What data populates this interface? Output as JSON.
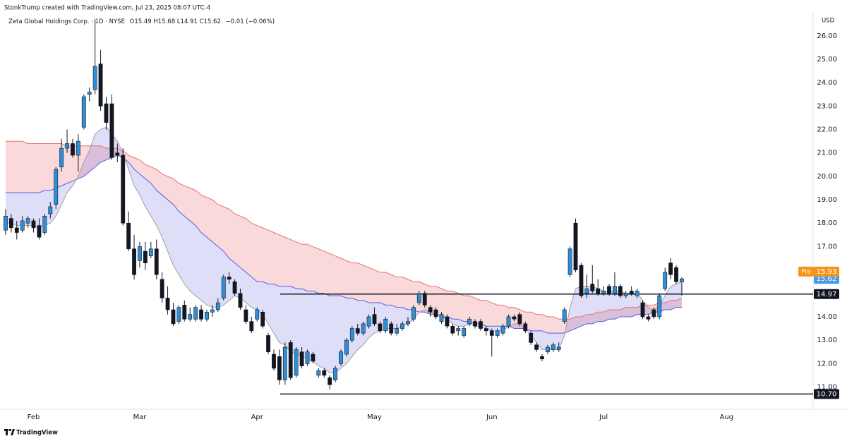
{
  "header": "StonkTrump created with TradingView.com, Jul 23, 2025 08:07 UTC-4",
  "footer": "TradingView",
  "chart_data": {
    "type": "candlestick",
    "symbol": "Zeta Global Holdings Corp. · 1D · NYSE",
    "ohlc_text": "O15.49 H15.68 L14.91 C15.62",
    "change_text": "−0.01 (−0.06%)",
    "currency": "USD",
    "up_color": "#2e8fd9",
    "down_color": "#131722",
    "grid": false,
    "ylim": [
      10.2,
      26.93
    ],
    "yticks": [
      {
        "value": 11,
        "label": "11.00"
      },
      {
        "value": 12,
        "label": "12.00"
      },
      {
        "value": 13,
        "label": "13.00"
      },
      {
        "value": 14,
        "label": "14.00"
      },
      {
        "value": 17,
        "label": "17.00"
      },
      {
        "value": 18,
        "label": "18.00"
      },
      {
        "value": 19,
        "label": "19.00"
      },
      {
        "value": 20,
        "label": "20.00"
      },
      {
        "value": 21,
        "label": "21.00"
      },
      {
        "value": 22,
        "label": "22.00"
      },
      {
        "value": 23,
        "label": "23.00"
      },
      {
        "value": 24,
        "label": "24.00"
      },
      {
        "value": 25,
        "label": "25.00"
      },
      {
        "value": 26,
        "label": "26.00"
      }
    ],
    "categories": [
      null,
      null,
      null,
      null,
      null,
      "Feb",
      null,
      null,
      null,
      null,
      null,
      null,
      null,
      null,
      null,
      null,
      null,
      null,
      null,
      null,
      null,
      null,
      null,
      null,
      "Mar",
      null,
      null,
      null,
      null,
      null,
      null,
      null,
      null,
      null,
      null,
      null,
      null,
      null,
      null,
      null,
      null,
      null,
      null,
      null,
      null,
      "Apr",
      null,
      null,
      null,
      null,
      null,
      null,
      null,
      null,
      null,
      null,
      null,
      null,
      null,
      null,
      null,
      null,
      null,
      null,
      null,
      null,
      "May",
      null,
      null,
      null,
      null,
      null,
      null,
      null,
      null,
      null,
      null,
      null,
      null,
      null,
      null,
      null,
      null,
      null,
      null,
      null,
      null,
      "Jun",
      null,
      null,
      null,
      null,
      null,
      null,
      null,
      null,
      null,
      null,
      null,
      null,
      null,
      null,
      null,
      null,
      null,
      null,
      null,
      "Jul",
      null,
      null,
      null,
      null,
      null,
      null,
      null,
      null,
      null,
      null,
      null,
      null,
      null,
      null,
      null,
      null,
      null,
      null,
      null,
      null,
      null,
      "Aug",
      null,
      null,
      null,
      null,
      null,
      null,
      null,
      null,
      null,
      null,
      null,
      null,
      null,
      null,
      null
    ],
    "open": [
      17.7,
      18.2,
      17.8,
      17.7,
      18.0,
      18.1,
      17.9,
      17.6,
      18.4,
      18.8,
      20.4,
      21.2,
      21.4,
      20.9,
      22.1,
      23.5,
      23.7,
      24.8,
      23.1,
      23.1,
      21.0,
      20.9,
      18.0,
      16.9,
      16.4,
      16.8,
      16.6,
      16.9,
      15.6,
      14.8,
      14.3,
      13.8,
      14.5,
      13.9,
      13.9,
      14.3,
      13.9,
      14.2,
      14.3,
      14.8,
      15.7,
      15.5,
      15.0,
      14.3,
      13.8,
      13.9,
      14.2,
      13.2,
      12.4,
      12.3,
      11.3,
      12.9,
      11.5,
      12.5,
      12.0,
      12.4,
      11.5,
      11.7,
      11.4,
      11.3,
      12.0,
      12.4,
      13.0,
      13.5,
      13.3,
      13.6,
      14.1,
      13.7,
      13.4,
      13.7,
      13.3,
      13.5,
      13.7,
      13.9,
      14.6,
      15.0,
      14.4,
      14.3,
      13.8,
      14.0,
      13.6,
      13.4,
      13.2,
      13.7,
      13.8,
      13.8,
      13.5,
      13.4,
      13.2,
      13.3,
      13.6,
      14.0,
      14.1,
      13.7,
      13.3,
      12.8,
      12.3,
      12.5,
      12.6,
      12.6,
      13.8,
      15.8,
      18.0,
      16.2,
      15.0,
      15.4,
      15.2,
      15.0,
      15.3,
      15.0,
      15.3,
      14.9,
      15.1,
      14.9,
      14.6,
      14.0,
      14.3,
      14.0,
      15.2,
      16.3,
      16.1,
      15.49,
      null,
      null,
      null,
      null,
      null,
      null,
      null,
      null,
      null,
      null,
      null,
      null,
      null,
      null,
      null,
      null,
      null,
      null,
      null,
      null,
      null,
      null,
      null
    ],
    "high": [
      18.6,
      18.4,
      18.1,
      18.3,
      18.3,
      18.2,
      18.2,
      18.4,
      18.9,
      20.4,
      21.6,
      22.0,
      21.6,
      21.8,
      23.5,
      23.8,
      26.7,
      25.4,
      23.4,
      23.5,
      21.4,
      21.2,
      18.5,
      17.5,
      17.2,
      17.2,
      17.2,
      17.3,
      15.9,
      15.3,
      14.6,
      14.5,
      14.7,
      14.4,
      14.5,
      14.5,
      14.3,
      14.5,
      14.8,
      15.8,
      15.9,
      15.6,
      15.2,
      14.5,
      14.0,
      14.4,
      14.3,
      13.3,
      12.6,
      12.6,
      12.9,
      13.0,
      12.7,
      12.7,
      12.6,
      12.5,
      11.8,
      11.8,
      11.5,
      11.9,
      12.6,
      13.1,
      13.6,
      13.7,
      13.8,
      14.1,
      14.4,
      13.8,
      14.0,
      13.8,
      13.7,
      13.8,
      14.0,
      14.5,
      15.1,
      15.1,
      14.5,
      14.4,
      14.2,
      14.1,
      13.7,
      13.6,
      13.6,
      14.0,
      13.9,
      13.9,
      13.6,
      13.5,
      13.5,
      13.7,
      14.1,
      14.1,
      14.2,
      13.8,
      13.4,
      12.9,
      12.4,
      12.8,
      12.9,
      12.9,
      14.4,
      17.0,
      18.2,
      16.3,
      15.8,
      16.2,
      15.6,
      15.3,
      15.4,
      15.9,
      15.4,
      15.1,
      15.3,
      15.2,
      14.7,
      14.1,
      14.4,
      15.0,
      16.1,
      16.5,
      16.2,
      15.68,
      null,
      null,
      null,
      null,
      null,
      null,
      null,
      null,
      null,
      null,
      null,
      null,
      null,
      null,
      null,
      null,
      null,
      null,
      null,
      null,
      null,
      null,
      null
    ],
    "low": [
      17.5,
      17.6,
      17.3,
      17.6,
      17.8,
      17.6,
      17.3,
      17.5,
      18.2,
      18.6,
      20.2,
      21.0,
      20.8,
      20.2,
      22.0,
      23.2,
      23.5,
      22.8,
      22.0,
      20.7,
      20.6,
      17.9,
      16.8,
      15.6,
      16.1,
      16.0,
      16.5,
      15.6,
      14.6,
      14.1,
      13.6,
      13.7,
      13.8,
      13.8,
      13.8,
      13.8,
      13.8,
      14.0,
      14.2,
      14.7,
      15.4,
      14.9,
      14.3,
      13.7,
      13.3,
      13.8,
      13.5,
      12.4,
      11.7,
      11.1,
      11.1,
      11.3,
      11.4,
      11.8,
      11.9,
      12.0,
      11.4,
      11.4,
      10.9,
      11.2,
      11.9,
      12.3,
      12.9,
      13.2,
      13.2,
      13.5,
      13.6,
      13.3,
      13.3,
      13.2,
      13.2,
      13.4,
      13.6,
      13.8,
      14.5,
      14.4,
      14.0,
      13.9,
      13.7,
      13.5,
      13.2,
      13.2,
      13.1,
      13.6,
      13.5,
      13.4,
      13.2,
      12.3,
      13.1,
      13.2,
      13.5,
      13.8,
      13.6,
      13.3,
      12.8,
      12.5,
      12.1,
      12.4,
      12.5,
      12.5,
      13.7,
      15.7,
      15.9,
      14.8,
      14.8,
      15.0,
      14.9,
      14.9,
      14.9,
      14.9,
      14.8,
      14.8,
      14.9,
      14.8,
      13.9,
      13.8,
      13.9,
      13.9,
      15.1,
      15.6,
      15.4,
      14.91,
      null,
      null,
      null,
      null,
      null,
      null,
      null,
      null,
      null,
      null,
      null,
      null,
      null,
      null,
      null,
      null,
      null,
      null,
      null,
      null,
      null,
      null,
      null
    ],
    "close": [
      18.3,
      17.8,
      17.6,
      18.1,
      18.2,
      17.8,
      17.4,
      18.3,
      18.7,
      20.3,
      21.2,
      21.4,
      20.9,
      21.5,
      23.4,
      23.6,
      24.7,
      23.0,
      22.3,
      20.8,
      20.9,
      18.0,
      16.9,
      15.8,
      17.0,
      16.3,
      16.9,
      15.8,
      14.8,
      14.3,
      13.7,
      14.4,
      13.9,
      14.1,
      14.4,
      13.9,
      14.2,
      14.3,
      14.6,
      15.7,
      15.6,
      15.0,
      14.4,
      13.8,
      13.4,
      14.3,
      13.6,
      12.5,
      11.8,
      11.3,
      12.7,
      11.4,
      12.6,
      11.9,
      12.5,
      12.1,
      11.7,
      11.5,
      11.1,
      11.8,
      12.5,
      13.0,
      13.5,
      13.3,
      13.7,
      14.0,
      13.7,
      13.4,
      13.9,
      13.3,
      13.5,
      13.7,
      13.8,
      14.4,
      15.0,
      14.5,
      14.2,
      14.0,
      14.1,
      13.6,
      13.3,
      13.5,
      13.5,
      13.9,
      13.6,
      13.5,
      13.4,
      13.2,
      13.4,
      13.6,
      14.0,
      13.9,
      13.7,
      13.4,
      12.9,
      12.6,
      12.2,
      12.7,
      12.8,
      12.7,
      14.3,
      16.9,
      16.0,
      14.9,
      15.2,
      15.1,
      15.0,
      15.1,
      15.0,
      15.3,
      14.9,
      15.0,
      15.0,
      15.1,
      14.0,
      13.9,
      14.0,
      14.9,
      15.9,
      15.8,
      15.5,
      15.62,
      null,
      null,
      null,
      null,
      null,
      null,
      null,
      null,
      null,
      null,
      null,
      null,
      null,
      null,
      null,
      null,
      null,
      null,
      null,
      null,
      null,
      null,
      null
    ],
    "ribbons": [
      {
        "color": "#e57373",
        "fill": "rgba(229,80,80,0.22)",
        "values": [
          21.5,
          21.5,
          21.5,
          21.5,
          21.4,
          21.4,
          21.4,
          21.4,
          21.4,
          21.4,
          21.4,
          21.3,
          21.3,
          21.3,
          21.3,
          21.3,
          21.3,
          21.3,
          21.2,
          21.2,
          21.2,
          21.1,
          20.9,
          20.8,
          20.7,
          20.5,
          20.4,
          20.3,
          20.1,
          20.0,
          19.9,
          19.7,
          19.6,
          19.5,
          19.4,
          19.2,
          19.1,
          19.0,
          18.8,
          18.7,
          18.6,
          18.4,
          18.3,
          18.2,
          18.0,
          17.9,
          17.8,
          17.7,
          17.6,
          17.5,
          17.4,
          17.3,
          17.2,
          17.1,
          17.1,
          17.0,
          16.9,
          16.8,
          16.7,
          16.6,
          16.5,
          16.4,
          16.3,
          16.3,
          16.2,
          16.1,
          16.0,
          15.9,
          15.9,
          15.8,
          15.7,
          15.7,
          15.6,
          15.5,
          15.5,
          15.4,
          15.3,
          15.3,
          15.2,
          15.1,
          15.1,
          15.0,
          14.9,
          14.9,
          14.8,
          14.7,
          14.7,
          14.6,
          14.5,
          14.5,
          14.4,
          14.4,
          14.3,
          14.2,
          14.2,
          14.1,
          14.1,
          14.0,
          14.0,
          13.9,
          13.9,
          13.9,
          14.0,
          14.0,
          14.1,
          14.1,
          14.2,
          14.2,
          14.3,
          14.3,
          14.3,
          14.4,
          14.4,
          14.4,
          14.5,
          14.5,
          14.5,
          14.6,
          14.6,
          14.7,
          14.7,
          14.8,
          null,
          null,
          null,
          null,
          null,
          null,
          null,
          null,
          null,
          null,
          null,
          null,
          null,
          null,
          null,
          null,
          null,
          null,
          null,
          null,
          null,
          null,
          null
        ]
      },
      {
        "color": "#5c5ce0",
        "fill": "rgba(70,70,220,0.18)",
        "values": [
          19.3,
          19.3,
          19.3,
          19.3,
          19.3,
          19.3,
          19.3,
          19.4,
          19.4,
          19.5,
          19.6,
          19.7,
          19.8,
          19.9,
          20.0,
          20.2,
          20.4,
          20.6,
          20.7,
          20.8,
          20.9,
          20.8,
          20.6,
          20.3,
          20.1,
          19.9,
          19.7,
          19.4,
          19.2,
          19.0,
          18.8,
          18.5,
          18.3,
          18.1,
          17.9,
          17.6,
          17.4,
          17.2,
          17.0,
          16.8,
          16.5,
          16.3,
          16.1,
          15.9,
          15.7,
          15.5,
          15.5,
          15.4,
          15.4,
          15.3,
          15.3,
          15.3,
          15.2,
          15.2,
          15.1,
          15.1,
          15.0,
          15.0,
          14.9,
          14.9,
          14.9,
          14.8,
          14.8,
          14.7,
          14.7,
          14.6,
          14.6,
          14.6,
          14.5,
          14.5,
          14.4,
          14.4,
          14.3,
          14.3,
          14.2,
          14.2,
          14.1,
          14.1,
          14.0,
          14.0,
          13.9,
          13.9,
          13.8,
          13.8,
          13.7,
          13.7,
          13.6,
          13.6,
          13.6,
          13.6,
          13.6,
          13.5,
          13.5,
          13.5,
          13.4,
          13.4,
          13.4,
          13.3,
          13.3,
          13.3,
          13.3,
          13.4,
          13.5,
          13.6,
          13.7,
          13.7,
          13.8,
          13.8,
          13.9,
          13.9,
          14.0,
          14.0,
          14.0,
          14.1,
          14.1,
          14.1,
          14.2,
          14.2,
          14.3,
          14.3,
          14.4,
          14.4,
          null,
          null,
          null,
          null,
          null,
          null,
          null,
          null,
          null,
          null,
          null,
          null,
          null,
          null,
          null,
          null,
          null,
          null,
          null,
          null,
          null,
          null,
          null
        ]
      },
      {
        "color": "#9e9e9e",
        "values": [
          18.0,
          18.0,
          17.9,
          17.9,
          17.9,
          17.9,
          17.8,
          17.9,
          18.0,
          18.3,
          18.8,
          19.3,
          19.6,
          20.0,
          20.6,
          21.1,
          21.8,
          22.0,
          22.1,
          21.8,
          21.5,
          21.0,
          20.3,
          19.6,
          19.2,
          18.7,
          18.3,
          17.9,
          17.4,
          16.8,
          16.2,
          15.8,
          15.4,
          15.1,
          14.9,
          14.7,
          14.5,
          14.4,
          14.4,
          14.5,
          14.7,
          14.9,
          14.8,
          14.6,
          14.4,
          14.3,
          14.1,
          13.7,
          13.3,
          12.9,
          12.8,
          12.5,
          12.4,
          12.3,
          12.2,
          12.1,
          11.9,
          11.8,
          11.6,
          11.6,
          11.8,
          12.0,
          12.3,
          12.6,
          12.8,
          13.1,
          13.3,
          13.4,
          13.5,
          13.5,
          13.5,
          13.6,
          13.7,
          13.9,
          14.2,
          14.3,
          14.2,
          14.1,
          14.0,
          13.9,
          13.7,
          13.6,
          13.6,
          13.7,
          13.6,
          13.6,
          13.5,
          13.4,
          13.4,
          13.4,
          13.6,
          13.7,
          13.7,
          13.5,
          13.2,
          12.9,
          12.6,
          12.6,
          12.6,
          12.6,
          13.2,
          14.4,
          15.2,
          15.3,
          15.3,
          15.3,
          15.2,
          15.1,
          15.1,
          15.1,
          15.1,
          15.0,
          15.0,
          15.0,
          14.7,
          14.4,
          14.3,
          14.5,
          14.9,
          15.3,
          15.4,
          15.5,
          null,
          null,
          null,
          null,
          null,
          null,
          null,
          null,
          null,
          null,
          null,
          null,
          null,
          null,
          null,
          null,
          null,
          null,
          null,
          null,
          null,
          null,
          null
        ]
      }
    ],
    "hline_color": "#131722",
    "hlines": [
      {
        "value": 14.97,
        "label": "14.97"
      },
      {
        "value": 10.7,
        "label": "10.70"
      }
    ],
    "last_color": "#4a9be3",
    "premarket": {
      "label": "Pre",
      "value": 15.93,
      "color": "#f7931a"
    }
  }
}
